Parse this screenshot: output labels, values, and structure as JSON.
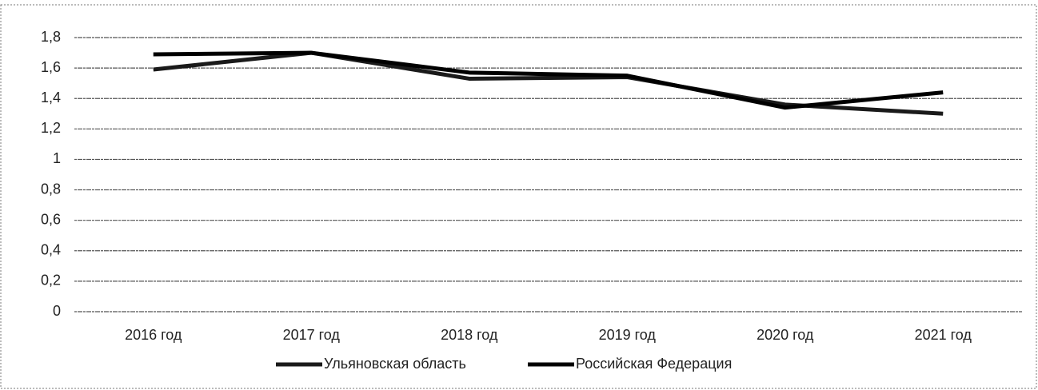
{
  "chart_data": {
    "type": "line",
    "categories": [
      "2016 год",
      "2017 год",
      "2018 год",
      "2019 год",
      "2020 год",
      "2021 год"
    ],
    "series": [
      {
        "name": "Ульяновская область",
        "color": "#1a1a1a",
        "values": [
          1.59,
          1.7,
          1.53,
          1.54,
          1.36,
          1.3
        ]
      },
      {
        "name": "Российская Федерация",
        "color": "#000000",
        "values": [
          1.69,
          1.7,
          1.57,
          1.55,
          1.34,
          1.44
        ]
      }
    ],
    "ylim": [
      0,
      1.8
    ],
    "yticks": [
      0,
      {
        "value": 0.2,
        "label": "0,2"
      },
      {
        "value": 0.4,
        "label": "0,4"
      },
      {
        "value": 0.6,
        "label": "0,6"
      },
      {
        "value": 0.8,
        "label": "0,8"
      },
      1,
      {
        "value": 1.2,
        "label": "1,2"
      },
      {
        "value": 1.4,
        "label": "1,4"
      },
      {
        "value": 1.6,
        "label": "1,6"
      },
      {
        "value": 1.8,
        "label": "1,8"
      }
    ],
    "grid": true,
    "legend": "bottom"
  }
}
